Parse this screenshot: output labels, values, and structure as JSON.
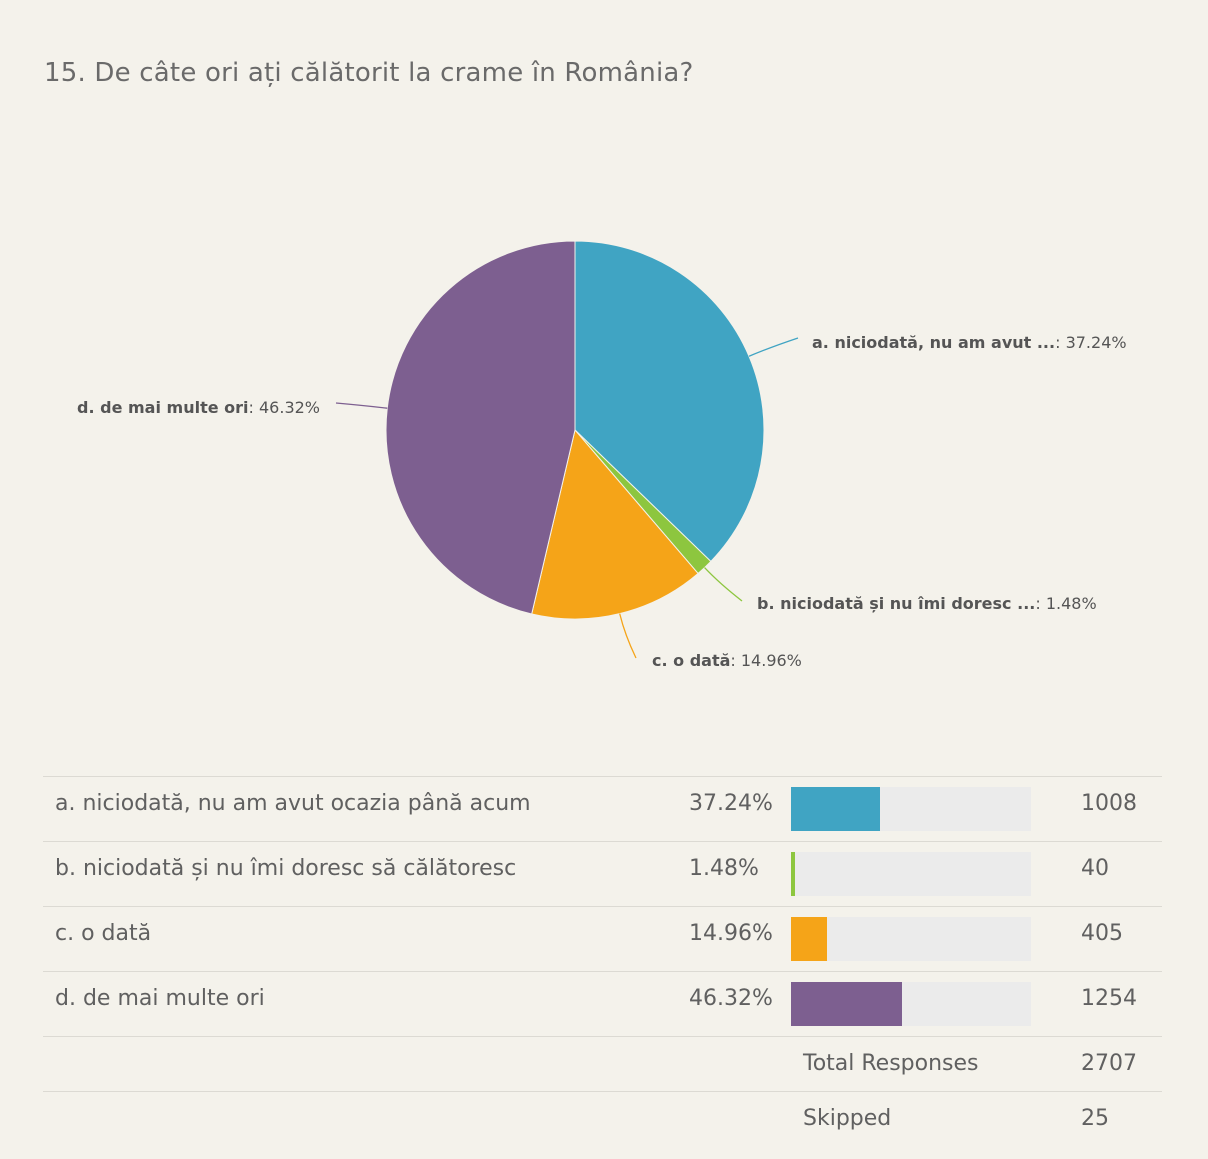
{
  "question": {
    "title": "15. De câte ori ați călătorit la crame în România?"
  },
  "chart_data": {
    "type": "pie",
    "title": "15. De câte ori ați călătorit la crame în România?",
    "slices": [
      {
        "key": "a",
        "short_label": "a. niciodată, nu am avut ...",
        "full_label": "a. niciodată, nu am avut ocazia până acum",
        "percent": 37.24,
        "percent_text": "37.24%",
        "count": 1008,
        "color": "#40a4c3"
      },
      {
        "key": "b",
        "short_label": "b. niciodată și nu îmi doresc ...",
        "full_label": "b. niciodată și nu îmi doresc să călătoresc",
        "percent": 1.48,
        "percent_text": "1.48%",
        "count": 40,
        "color": "#8dc63f"
      },
      {
        "key": "c",
        "short_label": "c. o dată",
        "full_label": "c. o dată",
        "percent": 14.96,
        "percent_text": "14.96%",
        "count": 405,
        "color": "#f5a418"
      },
      {
        "key": "d",
        "short_label": "d. de mai multe ori",
        "full_label": "d. de mai multe ori",
        "percent": 46.32,
        "percent_text": "46.32%",
        "count": 1254,
        "color": "#7d5f90"
      }
    ]
  },
  "summary": {
    "total_label": "Total Responses",
    "total_value": "2707",
    "skipped_label": "Skipped",
    "skipped_value": "25"
  },
  "colors": {
    "background": "#f4f2eb",
    "bar_track": "#ebebeb",
    "divider": "#dcdad3"
  }
}
